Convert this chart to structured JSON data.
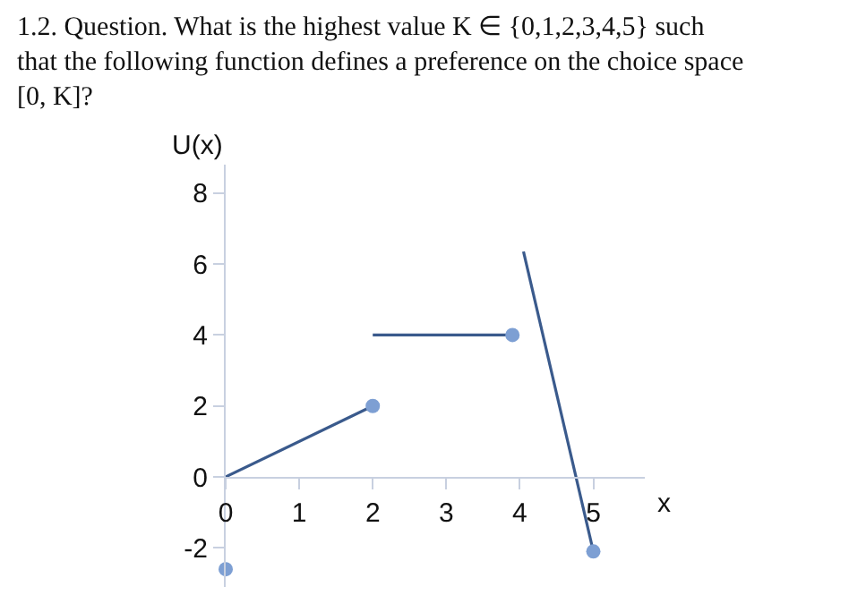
{
  "chart_data": {
    "type": "line",
    "title": "1.2. Question. What is the highest value K ∈ {0,1,2,3,4,5} such\nthat the following function defines a preference on the choice space\n[0, K]?",
    "xlabel": "x",
    "ylabel": "U(x)",
    "series": [
      {
        "x": [
          0,
          2
        ],
        "values": [
          0,
          2
        ],
        "color": "#3a5a8c"
      },
      {
        "x": [
          2,
          3.9
        ],
        "values": [
          4,
          4
        ],
        "color": "#3a5a8c"
      },
      {
        "x": [
          4.05,
          5
        ],
        "values": [
          6.35,
          -2.1
        ],
        "color": "#3a5a8c"
      },
      {
        "type": "scatter",
        "x": [
          2,
          3.9,
          5,
          0
        ],
        "values": [
          2,
          4,
          -2.1,
          -2.6
        ],
        "color": "#7d9fd3",
        "marker": "circle"
      }
    ],
    "xlim": [
      0,
      5.7
    ],
    "ylim": [
      -3.1,
      8.8
    ],
    "xticks": [
      0,
      1,
      2,
      3,
      4,
      5
    ],
    "yticks": [
      -2,
      0,
      2,
      4,
      6,
      8
    ],
    "legend": false,
    "line_style": "solid"
  }
}
